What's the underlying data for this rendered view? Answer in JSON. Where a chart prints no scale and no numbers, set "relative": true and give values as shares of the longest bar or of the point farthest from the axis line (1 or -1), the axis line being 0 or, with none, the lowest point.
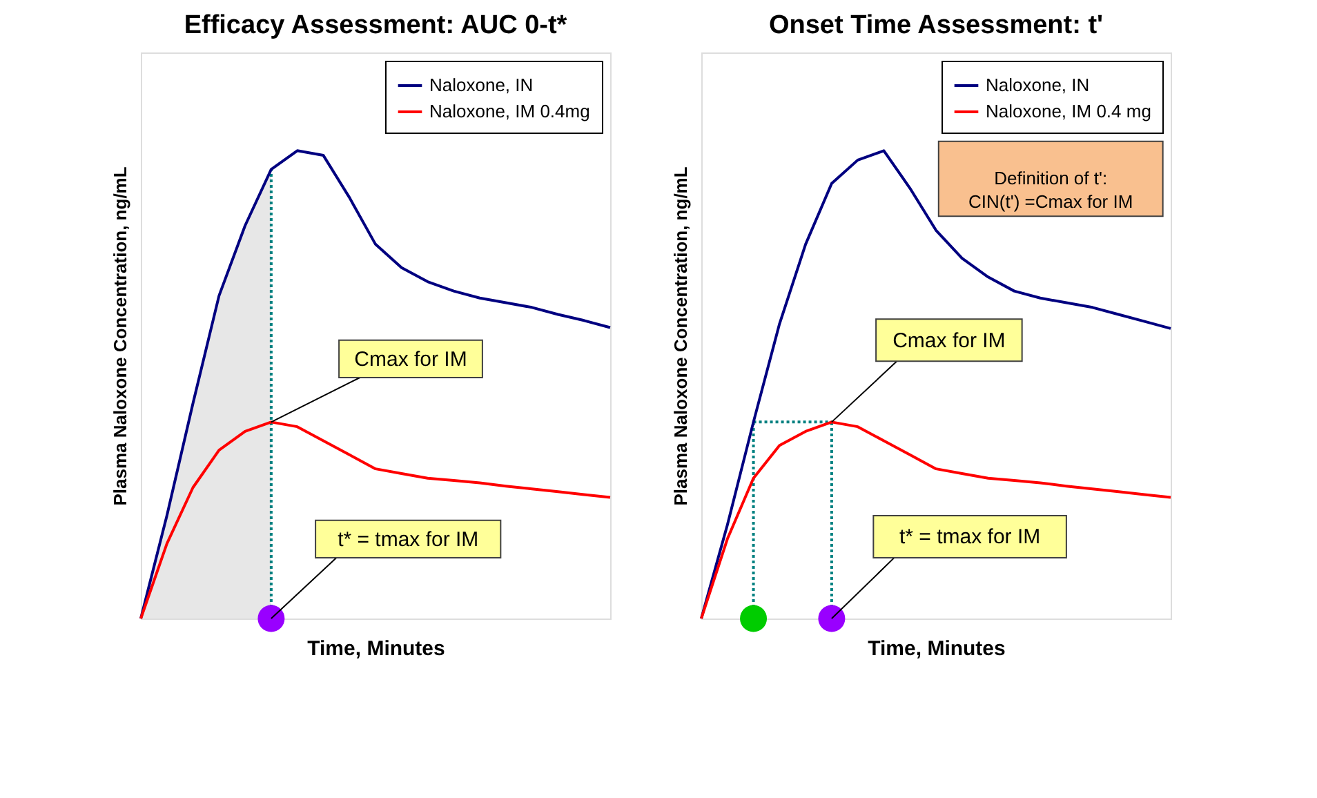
{
  "chart_data": [
    {
      "type": "line",
      "title": "Efficacy Assessment: AUC 0-t*",
      "xlabel": "Time, Minutes",
      "ylabel": "Plasma Naloxone Concentration, ng/mL",
      "relative": true,
      "tick_labels": false,
      "legend": "top right",
      "categories": [
        null,
        null,
        null,
        null,
        null,
        null,
        null,
        null,
        null,
        null,
        null,
        null,
        null,
        null,
        null,
        null,
        null,
        null,
        null
      ],
      "series": [
        {
          "name": "Naloxone, IN",
          "color": "#000080",
          "values": [
            0,
            0.22,
            0.46,
            0.69,
            0.84,
            0.96,
            1.0,
            0.99,
            0.9,
            0.8,
            0.75,
            0.72,
            0.7,
            0.685,
            0.675,
            0.665,
            0.65,
            0.637,
            0.622
          ]
        },
        {
          "name": "Naloxone, IM 0.4mg",
          "color": "#ff0000",
          "values": [
            0,
            0.16,
            0.28,
            0.36,
            0.4,
            0.42,
            0.41,
            0.38,
            0.35,
            0.32,
            0.31,
            0.3,
            0.295,
            0.29,
            0.283,
            0.277,
            0.271,
            0.265,
            0.259
          ]
        }
      ],
      "annotations": [
        "Cmax for IM",
        "t* = tmax for IM"
      ]
    },
    {
      "type": "line",
      "title": "Onset Time Assessment: t'",
      "xlabel": "Time, Minutes",
      "ylabel": "Plasma Naloxone Concentration, ng/mL",
      "relative": true,
      "tick_labels": false,
      "legend": "top right",
      "categories": [
        null,
        null,
        null,
        null,
        null,
        null,
        null,
        null,
        null,
        null,
        null,
        null,
        null,
        null,
        null,
        null,
        null,
        null,
        null
      ],
      "series": [
        {
          "name": "Naloxone, IN",
          "color": "#000080",
          "values": [
            0,
            0.2,
            0.42,
            0.63,
            0.8,
            0.93,
            0.98,
            1.0,
            0.92,
            0.83,
            0.77,
            0.73,
            0.7,
            0.685,
            0.675,
            0.665,
            0.65,
            0.635,
            0.62
          ]
        },
        {
          "name": "Naloxone, IM 0.4 mg",
          "color": "#ff0000",
          "values": [
            0,
            0.17,
            0.3,
            0.37,
            0.4,
            0.42,
            0.41,
            0.38,
            0.35,
            0.32,
            0.31,
            0.3,
            0.295,
            0.29,
            0.283,
            0.277,
            0.271,
            0.265,
            0.259
          ]
        }
      ],
      "ref_lines": [
        {
          "axis": "y",
          "value": 0.42,
          "color": "#008080",
          "line_style": "dotted"
        }
      ],
      "annotations": [
        "Definition of t':\nCIN(t') =Cmax for IM",
        "Cmax for IM",
        "t* = tmax for IM"
      ]
    }
  ]
}
